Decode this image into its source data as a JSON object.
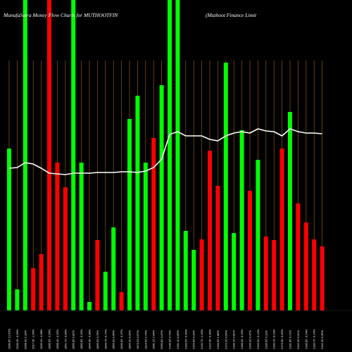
{
  "chart_data": {
    "type": "bar",
    "title_left": "MunafaSutra  Money Flow  Charts for MUTHOOTFIN",
    "title_right": "(Muthoot Finance   Limit",
    "series": [
      {
        "name": "money-flow",
        "values": [
          {
            "v": 230,
            "c": "green"
          },
          {
            "v": 30,
            "c": "green"
          },
          {
            "v": 480,
            "c": "green"
          },
          {
            "v": 60,
            "c": "red"
          },
          {
            "v": 80,
            "c": "red"
          },
          {
            "v": 480,
            "c": "red"
          },
          {
            "v": 210,
            "c": "red"
          },
          {
            "v": 175,
            "c": "red"
          },
          {
            "v": 480,
            "c": "green"
          },
          {
            "v": 210,
            "c": "green"
          },
          {
            "v": 12,
            "c": "green"
          },
          {
            "v": 100,
            "c": "red"
          },
          {
            "v": 55,
            "c": "green"
          },
          {
            "v": 118,
            "c": "green"
          },
          {
            "v": 26,
            "c": "red"
          },
          {
            "v": 272,
            "c": "green"
          },
          {
            "v": 305,
            "c": "green"
          },
          {
            "v": 210,
            "c": "green"
          },
          {
            "v": 245,
            "c": "red"
          },
          {
            "v": 320,
            "c": "green"
          },
          {
            "v": 480,
            "c": "green"
          },
          {
            "v": 480,
            "c": "green"
          },
          {
            "v": 113,
            "c": "green"
          },
          {
            "v": 86,
            "c": "green"
          },
          {
            "v": 101,
            "c": "red"
          },
          {
            "v": 227,
            "c": "red"
          },
          {
            "v": 177,
            "c": "red"
          },
          {
            "v": 352,
            "c": "green"
          },
          {
            "v": 110,
            "c": "green"
          },
          {
            "v": 256,
            "c": "green"
          },
          {
            "v": 170,
            "c": "red"
          },
          {
            "v": 214,
            "c": "green"
          },
          {
            "v": 105,
            "c": "red"
          },
          {
            "v": 100,
            "c": "red"
          },
          {
            "v": 230,
            "c": "red"
          },
          {
            "v": 282,
            "c": "green"
          },
          {
            "v": 152,
            "c": "red"
          },
          {
            "v": 125,
            "c": "red"
          },
          {
            "v": 101,
            "c": "red"
          },
          {
            "v": 91,
            "c": "red"
          }
        ]
      },
      {
        "name": "price-line",
        "values": [
          202,
          203,
          210,
          208,
          202,
          195,
          194,
          193,
          195,
          195,
          195,
          196,
          196,
          196,
          197,
          197,
          196,
          198,
          203,
          215,
          250,
          254,
          248,
          248,
          248,
          243,
          241,
          248,
          252,
          254,
          252,
          258,
          255,
          254,
          248,
          258,
          254,
          252,
          252,
          251
        ]
      }
    ],
    "x_labels": [
      "1989.85 12.62%",
      "2000.35 -0.55%",
      "2058.40 2.19%",
      "2017.45 -1.99%",
      "1935.20 -4.08%",
      "1885.65 -2.56%",
      "1868.40 -0.92%",
      "1851.70 -0.89%",
      "1866.85 0.82%",
      "1860.85 -0.32%",
      "1844.40 -0.88%",
      "1859.05 0.79%",
      "1844.70 -0.77%",
      "1856.90 0.66%",
      "1849.95 -0.37%",
      "1855.30 0.29%",
      "1873.25 0.97%",
      "1924.50 2.74%",
      "1981.15 2.94%",
      "2069.80 4.47%",
      "2146.35 3.70%",
      "2161.10 0.69%",
      "2150.55 -0.49%",
      "2154.65 0.19%",
      "2132.70 -1.02%",
      "2122.45 -0.48%",
      "2160.65 1.80%",
      "2172.25 0.54%",
      "2190.15 0.82%",
      "2186.05 -0.19%",
      "2196.30 0.47%",
      "2193.30 -0.14%",
      "2195.65 0.11%",
      "2190.70 -0.23%",
      "2176.40 -0.65%",
      "2191.85 0.71%",
      "2192.05 0.01%",
      "2186.85 -0.24%",
      "2183.75 -0.14%",
      "2192.35 0.39%"
    ],
    "colors": {
      "background": "#000000",
      "bar_green": "#00ff00",
      "bar_red": "#ff0000",
      "gridline": "#8a5a1a",
      "line": "#ffffff"
    },
    "grid": true,
    "legend": "none"
  }
}
